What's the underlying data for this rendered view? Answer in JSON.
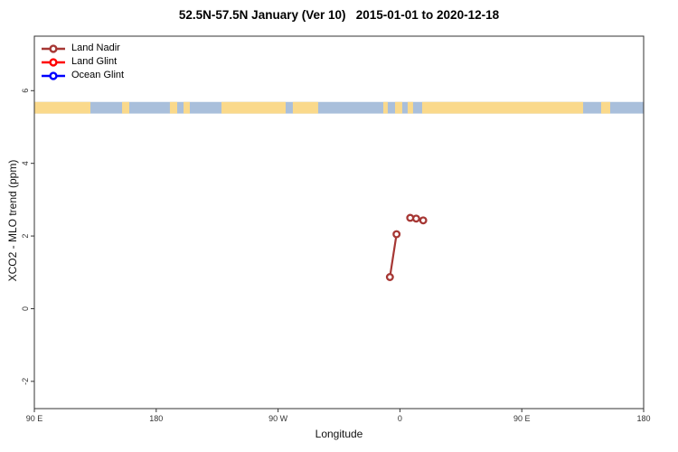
{
  "title": "52.5N-57.5N January (Ver 10)   2015-01-01 to 2020-12-18",
  "legend": {
    "items": [
      {
        "label": "Land Nadir",
        "color": "#A63734"
      },
      {
        "label": "Land Glint",
        "color": "#FF0000"
      },
      {
        "label": "Ocean Glint",
        "color": "#0000FF"
      }
    ]
  },
  "chart_data": {
    "type": "scatter",
    "title": "52.5N-57.5N January (Ver 10)   2015-01-01 to 2020-12-18",
    "xlabel": "Longitude",
    "ylabel": "XCO2 - MLO trend (ppm)",
    "x_axis": {
      "note": "longitude axis starts at 90E on the left and wraps eastward: 90E, 180, 90W, 0, 90E, 180",
      "tick_labels": [
        "90 E",
        "180",
        "90 W",
        "0",
        "90 E",
        "180"
      ],
      "ticks_deg": [
        0,
        90,
        180,
        270,
        360,
        450
      ],
      "range_deg": [
        0,
        450
      ]
    },
    "y_axis": {
      "ticks": [
        -2,
        0,
        2,
        4,
        6
      ],
      "range": [
        -2.75,
        7.5
      ]
    },
    "grid": false,
    "legend_position": "top-left",
    "series": [
      {
        "name": "Land Nadir",
        "color": "#A63734",
        "segments": [
          [
            {
              "lon": -7.4,
              "value": 0.87
            },
            {
              "lon": -2.5,
              "value": 2.05
            }
          ],
          [
            {
              "lon": 7.6,
              "value": 2.5
            },
            {
              "lon": 12.0,
              "value": 2.48
            },
            {
              "lon": 17.2,
              "value": 2.43
            }
          ]
        ]
      },
      {
        "name": "Land Glint",
        "color": "#FF0000",
        "segments": []
      },
      {
        "name": "Ocean Glint",
        "color": "#0000FF",
        "segments": []
      }
    ],
    "map_strip": {
      "description": "world-map latitude band drawn across plot near y=5.5",
      "y_top_value": 5.69,
      "y_bottom_value": 5.37,
      "ocean_color": "#A9BFDB",
      "land_color": "#FAD98B",
      "land_segments_deg": [
        [
          0,
          41.4
        ],
        [
          64.8,
          70.1
        ],
        [
          100.1,
          105.5
        ],
        [
          110.2,
          114.8
        ],
        [
          138.2,
          185.6
        ],
        [
          190.9,
          209.6
        ],
        [
          257.7,
          261.0
        ],
        [
          266.4,
          271.7
        ],
        [
          275.7,
          279.7
        ],
        [
          286.4,
          405.3
        ],
        [
          418.6,
          425.3
        ]
      ]
    }
  }
}
